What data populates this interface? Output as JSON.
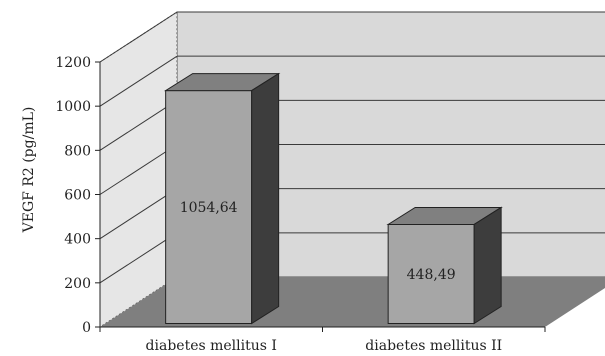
{
  "chart_data": {
    "type": "bar",
    "categories": [
      "diabetes mellitus I",
      "diabetes mellitus II"
    ],
    "values": [
      1054.64,
      448.49
    ],
    "data_labels": [
      "1054,64",
      "448,49"
    ],
    "ylabel": "VEGF R2 (pg/mL)",
    "xlabel": "",
    "ylim": [
      0,
      1200
    ],
    "yticks": [
      0,
      200,
      400,
      600,
      800,
      1000,
      1200
    ],
    "grid": true,
    "three_d": true,
    "colors": {
      "bar_front": "#a6a6a6",
      "bar_top": "#808080",
      "bar_side": "#3d3d3d",
      "back_wall": "#d9d9d9",
      "side_wall": "#e6e6e6",
      "floor": "#7f7f7f",
      "gridline": "#3a3a3a"
    }
  }
}
